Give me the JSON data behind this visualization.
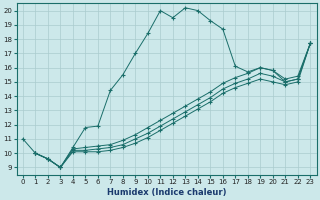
{
  "xlabel": "Humidex (Indice chaleur)",
  "bg_color": "#cce8ea",
  "grid_color": "#aaccce",
  "line_color": "#1a6e6a",
  "xlim": [
    -0.5,
    23.5
  ],
  "ylim": [
    8.5,
    20.5
  ],
  "xticks": [
    0,
    1,
    2,
    3,
    4,
    5,
    6,
    7,
    8,
    9,
    10,
    11,
    12,
    13,
    14,
    15,
    16,
    17,
    18,
    19,
    20,
    21,
    22,
    23
  ],
  "yticks": [
    9,
    10,
    11,
    12,
    13,
    14,
    15,
    16,
    17,
    18,
    19,
    20
  ],
  "line1_x": [
    0,
    1,
    2,
    3,
    4,
    5,
    6,
    7,
    8,
    9,
    10,
    11,
    12,
    13,
    14,
    15,
    16,
    17,
    18,
    19,
    20,
    21,
    22,
    23
  ],
  "line1_y": [
    11.0,
    10.0,
    9.6,
    9.0,
    10.4,
    11.8,
    11.9,
    14.4,
    15.5,
    17.0,
    18.4,
    20.0,
    19.5,
    20.2,
    20.0,
    19.3,
    18.7,
    16.1,
    15.7,
    16.0,
    15.8,
    15.0,
    15.2,
    17.7
  ],
  "line2_x": [
    1,
    2,
    3,
    4,
    5,
    6,
    7,
    8,
    9,
    10,
    11,
    12,
    13,
    14,
    15,
    16,
    17,
    18,
    19,
    20,
    21,
    22,
    23
  ],
  "line2_y": [
    10.0,
    9.6,
    9.0,
    10.3,
    10.4,
    10.5,
    10.6,
    10.9,
    11.3,
    11.8,
    12.3,
    12.8,
    13.3,
    13.8,
    14.3,
    14.9,
    15.3,
    15.6,
    16.0,
    15.8,
    15.2,
    15.4,
    17.7
  ],
  "line3_x": [
    1,
    2,
    3,
    4,
    5,
    6,
    7,
    8,
    9,
    10,
    11,
    12,
    13,
    14,
    15,
    16,
    17,
    18,
    19,
    20,
    21,
    22,
    23
  ],
  "line3_y": [
    10.0,
    9.6,
    9.0,
    10.2,
    10.2,
    10.3,
    10.4,
    10.6,
    11.0,
    11.4,
    11.9,
    12.4,
    12.9,
    13.4,
    13.9,
    14.5,
    14.9,
    15.2,
    15.6,
    15.4,
    15.0,
    15.2,
    17.7
  ],
  "line4_x": [
    1,
    2,
    3,
    4,
    5,
    6,
    7,
    8,
    9,
    10,
    11,
    12,
    13,
    14,
    15,
    16,
    17,
    18,
    19,
    20,
    21,
    22,
    23
  ],
  "line4_y": [
    10.0,
    9.6,
    9.0,
    10.1,
    10.1,
    10.1,
    10.2,
    10.4,
    10.7,
    11.1,
    11.6,
    12.1,
    12.6,
    13.1,
    13.6,
    14.2,
    14.6,
    14.9,
    15.2,
    15.0,
    14.8,
    15.0,
    17.7
  ],
  "xlabel_fontsize": 6,
  "tick_fontsize": 5
}
